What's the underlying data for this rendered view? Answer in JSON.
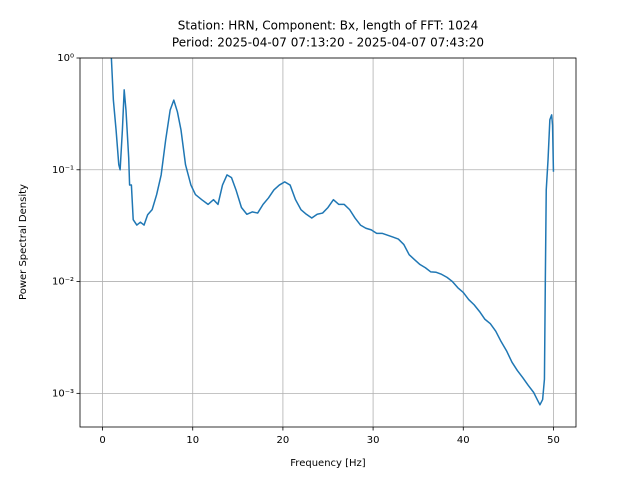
{
  "chart_data": {
    "type": "line",
    "title": [
      "Station: HRN, Component: Bx, length of FFT: 1024",
      "Period: 2025-04-07 07:13:20 - 2025-04-07 07:43:20"
    ],
    "x_label": "Frequency [Hz]",
    "y_label": "Power Spectral Density",
    "yscale": "log",
    "grid": true,
    "xlim": [
      -2.5,
      52.5
    ],
    "ylim": [
      0.0005,
      1
    ],
    "xticks": [
      0,
      10,
      20,
      30,
      40,
      50
    ],
    "yticks": [
      {
        "value": 0.001,
        "label": "10⁻³"
      },
      {
        "value": 0.01,
        "label": "10⁻²"
      },
      {
        "value": 0.1,
        "label": "10⁻¹"
      },
      {
        "value": 1,
        "label": "10⁰"
      }
    ],
    "x": [
      0.98,
      1.2,
      1.5,
      1.8,
      1.95,
      2.2,
      2.4,
      2.6,
      2.9,
      3.0,
      3.2,
      3.4,
      3.8,
      4.2,
      4.6,
      5.0,
      5.5,
      6.0,
      6.5,
      7.0,
      7.5,
      7.9,
      8.3,
      8.7,
      9.2,
      9.8,
      10.3,
      11.0,
      11.7,
      12.3,
      12.8,
      13.3,
      13.8,
      14.3,
      14.8,
      15.4,
      16.0,
      16.6,
      17.2,
      17.8,
      18.4,
      19.0,
      19.6,
      20.2,
      20.8,
      21.4,
      22.0,
      22.6,
      23.2,
      23.8,
      24.4,
      25.0,
      25.6,
      26.2,
      26.8,
      27.4,
      28.0,
      28.6,
      29.2,
      29.8,
      30.4,
      31.0,
      31.6,
      32.2,
      32.8,
      33.4,
      34.0,
      34.6,
      35.2,
      35.8,
      36.4,
      37.0,
      37.6,
      38.2,
      38.8,
      39.4,
      40.0,
      40.6,
      41.2,
      41.8,
      42.4,
      43.0,
      43.6,
      44.2,
      44.8,
      45.4,
      46.0,
      46.6,
      47.2,
      47.8,
      48.2,
      48.5,
      48.8,
      49.0,
      49.1,
      49.2,
      49.4,
      49.6,
      49.8,
      49.9,
      50.0
    ],
    "series": [
      {
        "color": "#1f77b4",
        "values": [
          1.0,
          0.42,
          0.227,
          0.111,
          0.1,
          0.227,
          0.518,
          0.34,
          0.128,
          0.073,
          0.073,
          0.0358,
          0.032,
          0.034,
          0.032,
          0.0396,
          0.044,
          0.06,
          0.09,
          0.185,
          0.343,
          0.42,
          0.33,
          0.227,
          0.111,
          0.073,
          0.06,
          0.054,
          0.049,
          0.054,
          0.049,
          0.073,
          0.09,
          0.085,
          0.066,
          0.046,
          0.04,
          0.042,
          0.041,
          0.049,
          0.056,
          0.066,
          0.073,
          0.078,
          0.073,
          0.054,
          0.044,
          0.04,
          0.037,
          0.04,
          0.041,
          0.046,
          0.054,
          0.049,
          0.049,
          0.044,
          0.037,
          0.032,
          0.03,
          0.029,
          0.027,
          0.027,
          0.026,
          0.025,
          0.024,
          0.0215,
          0.0174,
          0.0157,
          0.0142,
          0.0133,
          0.0122,
          0.0121,
          0.0116,
          0.0109,
          0.01,
          0.0088,
          0.008,
          0.0069,
          0.0062,
          0.0054,
          0.0046,
          0.0042,
          0.0036,
          0.0029,
          0.0024,
          0.0019,
          0.0016,
          0.00138,
          0.00118,
          0.00102,
          0.00088,
          0.00079,
          0.00088,
          0.00134,
          0.0105,
          0.066,
          0.123,
          0.28,
          0.31,
          0.25,
          0.096
        ]
      }
    ]
  }
}
